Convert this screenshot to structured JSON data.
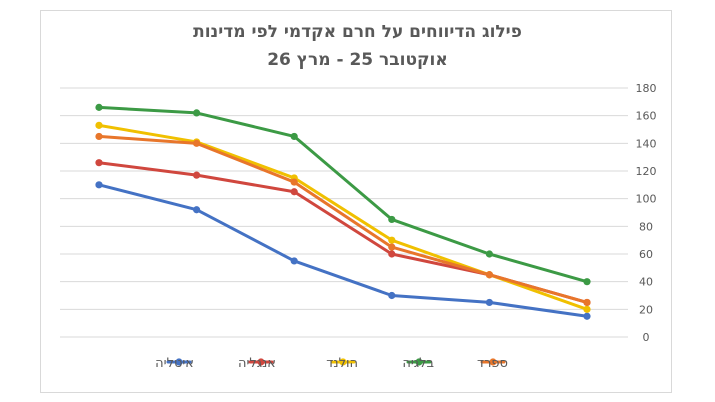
{
  "chart_data": {
    "type": "line",
    "title_line1": "פילוג הדיווחים על חרם אקדמי לפי מדינות",
    "title_line2": "אוקטובר 25 - מרץ 26",
    "xlabel": "",
    "ylabel": "",
    "ylim": [
      0,
      180
    ],
    "yticks": [
      "0",
      "20",
      "40",
      "60",
      "80",
      "100",
      "120",
      "140",
      "160",
      "180"
    ],
    "x": [
      1,
      2,
      3,
      4,
      5,
      6
    ],
    "grid": true,
    "legend_position": "bottom",
    "series": [
      {
        "name": "איטליה",
        "color": "#4472c4",
        "values": [
          110,
          92,
          55,
          30,
          25,
          15
        ]
      },
      {
        "name": "אנגליה",
        "color": "#d0473e",
        "values": [
          126,
          117,
          105,
          60,
          45,
          25
        ]
      },
      {
        "name": "הולנד",
        "color": "#f0c000",
        "values": [
          153,
          141,
          115,
          70,
          45,
          20
        ]
      },
      {
        "name": "בלגיה",
        "color": "#3c9a45",
        "values": [
          166,
          162,
          145,
          85,
          60,
          40
        ]
      },
      {
        "name": "ספרד",
        "color": "#e8762b",
        "values": [
          145,
          140,
          112,
          65,
          45,
          25
        ]
      }
    ]
  }
}
